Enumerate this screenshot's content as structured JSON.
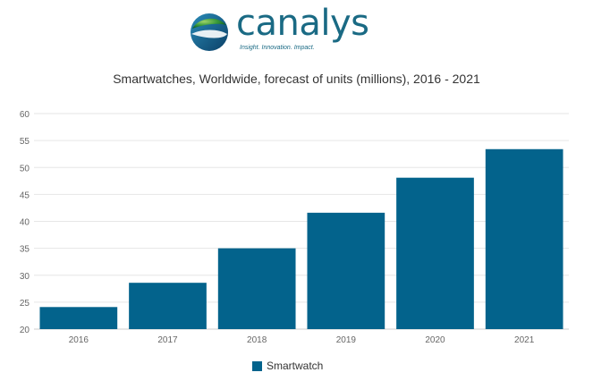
{
  "logo": {
    "wordmark": "canalys",
    "tagline": "Insight. Innovation. Impact."
  },
  "colors": {
    "bar": "#03638c",
    "brand": "#1a6a84",
    "grid": "#e6e6e6"
  },
  "chart_data": {
    "type": "bar",
    "title": "Smartwatches, Worldwide, forecast of units (millions), 2016 - 2021",
    "xlabel": "",
    "ylabel": "",
    "categories": [
      "2016",
      "2017",
      "2018",
      "2019",
      "2020",
      "2021"
    ],
    "series": [
      {
        "name": "Smartwatch",
        "values": [
          24.1,
          28.6,
          35.0,
          41.6,
          48.1,
          53.4
        ]
      }
    ],
    "ylim": [
      20,
      60
    ],
    "yticks": [
      "20",
      "25",
      "30",
      "35",
      "40",
      "45",
      "50",
      "55",
      "60"
    ],
    "grid": true,
    "legend_position": "bottom-center"
  }
}
